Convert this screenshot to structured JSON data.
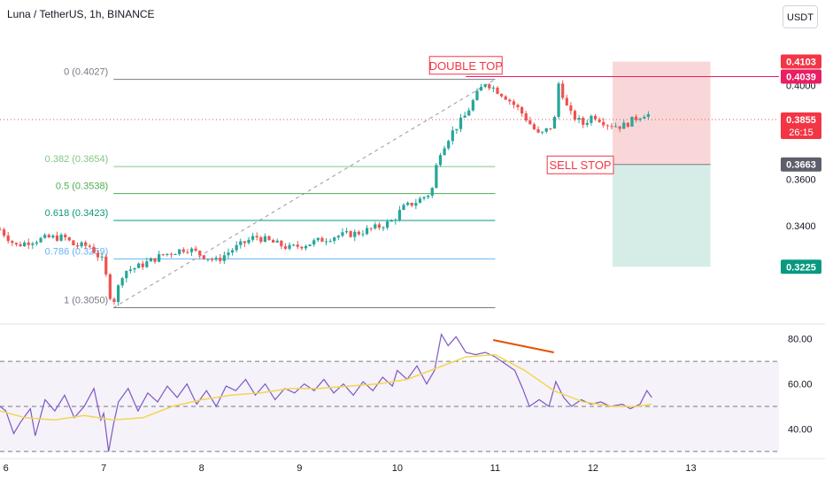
{
  "header": {
    "symbol_title": "Luna / TetherUS, 1h, BINANCE",
    "unit_button": "USDT"
  },
  "colors": {
    "up": "#26a69a",
    "down": "#ef5350",
    "rsi": "#7e57c2",
    "rsi_ma": "#f2d64f",
    "annotation": "#f23645",
    "trendline_orange": "#e65100",
    "sell_zone": "#f7c9cc",
    "buy_zone": "#cbe8e0"
  },
  "chart_data": {
    "type": "candlestick",
    "symbol": "Luna / TetherUS",
    "interval": "1h",
    "exchange": "BINANCE",
    "x_ticks": [
      {
        "label": "6",
        "day": 6
      },
      {
        "label": "7",
        "day": 7
      },
      {
        "label": "8",
        "day": 8
      },
      {
        "label": "9",
        "day": 9
      },
      {
        "label": "10",
        "day": 10
      },
      {
        "label": "11",
        "day": 11
      },
      {
        "label": "12",
        "day": 12
      },
      {
        "label": "13",
        "day": 13
      }
    ],
    "xlim_days": [
      5.94,
      13.9
    ],
    "price_axis": {
      "ylim": [
        0.2995,
        0.4215
      ],
      "ticks": [
        {
          "label": "0.4000",
          "value": 0.4
        },
        {
          "label": "0.3600",
          "value": 0.36
        },
        {
          "label": "0.3400",
          "value": 0.34
        }
      ]
    },
    "price_labels": [
      {
        "label": "0.4103",
        "value": 0.4103,
        "style": "red"
      },
      {
        "label": "0.4039",
        "value": 0.4039,
        "style": "magenta"
      },
      {
        "label": "0.3855",
        "value": 0.3855,
        "style": "red",
        "sub": "26:15"
      },
      {
        "label": "0.3663",
        "value": 0.3663,
        "style": "gray"
      },
      {
        "label": "0.3225",
        "value": 0.3225,
        "style": "teal"
      }
    ],
    "last_price": 0.3855,
    "candles_hourly_close_points": [
      [
        5.94,
        0.3385
      ],
      [
        6.1,
        0.3315
      ],
      [
        6.25,
        0.3335
      ],
      [
        6.45,
        0.335
      ],
      [
        6.6,
        0.335
      ],
      [
        6.7,
        0.3315
      ],
      [
        6.85,
        0.3315
      ],
      [
        7.0,
        0.3245
      ],
      [
        7.05,
        0.3115
      ],
      [
        7.1,
        0.3075
      ],
      [
        7.2,
        0.3205
      ],
      [
        7.35,
        0.3225
      ],
      [
        7.6,
        0.3275
      ],
      [
        7.85,
        0.3305
      ],
      [
        8.0,
        0.3275
      ],
      [
        8.15,
        0.325
      ],
      [
        8.3,
        0.3295
      ],
      [
        8.55,
        0.3355
      ],
      [
        8.75,
        0.3325
      ],
      [
        8.9,
        0.3305
      ],
      [
        9.1,
        0.3325
      ],
      [
        9.35,
        0.3355
      ],
      [
        9.6,
        0.337
      ],
      [
        9.8,
        0.3395
      ],
      [
        9.95,
        0.342
      ],
      [
        10.05,
        0.3475
      ],
      [
        10.2,
        0.3505
      ],
      [
        10.35,
        0.3545
      ],
      [
        10.42,
        0.3705
      ],
      [
        10.55,
        0.3795
      ],
      [
        10.7,
        0.3875
      ],
      [
        10.8,
        0.3955
      ],
      [
        10.9,
        0.4015
      ],
      [
        11.0,
        0.3985
      ],
      [
        11.1,
        0.3955
      ],
      [
        11.25,
        0.3895
      ],
      [
        11.45,
        0.3785
      ],
      [
        11.6,
        0.3835
      ],
      [
        11.65,
        0.4015
      ],
      [
        11.75,
        0.3885
      ],
      [
        11.9,
        0.3835
      ],
      [
        12.0,
        0.3875
      ],
      [
        12.15,
        0.3835
      ],
      [
        12.3,
        0.3825
      ],
      [
        12.45,
        0.3865
      ],
      [
        12.55,
        0.3885
      ],
      [
        12.6,
        0.3855
      ]
    ],
    "fib_retracement": {
      "levels": [
        {
          "label": "0 (0.4027)",
          "value": 0.4027,
          "color": "#787b86"
        },
        {
          "label": "0.382 (0.3654)",
          "value": 0.3654,
          "color": "#81c784"
        },
        {
          "label": "0.5 (0.3538)",
          "value": 0.3538,
          "color": "#4caf50"
        },
        {
          "label": "0.618 (0.3423)",
          "value": 0.3423,
          "color": "#089981"
        },
        {
          "label": "0.786 (0.3259)",
          "value": 0.3259,
          "color": "#64b5f6"
        },
        {
          "label": "1 (0.3050)",
          "value": 0.305,
          "color": "#787b86"
        }
      ],
      "from": {
        "day": 7.1,
        "value": 0.305
      },
      "to": {
        "day": 11.0,
        "value": 0.4027
      },
      "end_day": 11.0
    },
    "resistance_line": {
      "value": 0.4039,
      "from_day": 10.7
    },
    "position_tool": {
      "type": "short",
      "from_day": 12.2,
      "to_day": 13.2,
      "stop": 0.4103,
      "entry": 0.3663,
      "target": 0.3225
    },
    "annotations": [
      {
        "text": "DOUBLE TOP",
        "day": 10.7,
        "value": 0.4087
      },
      {
        "text": "SELL STOP",
        "day": 11.87,
        "value": 0.3661
      }
    ],
    "rsi": {
      "ylim": [
        28,
        85
      ],
      "ticks": [
        {
          "label": "80.00",
          "value": 80
        },
        {
          "label": "60.00",
          "value": 60
        },
        {
          "label": "40.00",
          "value": 40
        }
      ],
      "bands": {
        "upper": 70,
        "middle": 50,
        "lower": 30
      },
      "values": [
        [
          5.94,
          50
        ],
        [
          6.0,
          48
        ],
        [
          6.08,
          38
        ],
        [
          6.15,
          43
        ],
        [
          6.25,
          49
        ],
        [
          6.3,
          37
        ],
        [
          6.4,
          53
        ],
        [
          6.5,
          48
        ],
        [
          6.6,
          55
        ],
        [
          6.7,
          45
        ],
        [
          6.8,
          50
        ],
        [
          6.9,
          58
        ],
        [
          6.97,
          44
        ],
        [
          7.0,
          47
        ],
        [
          7.05,
          30
        ],
        [
          7.1,
          42
        ],
        [
          7.15,
          52
        ],
        [
          7.25,
          58
        ],
        [
          7.35,
          48
        ],
        [
          7.45,
          56
        ],
        [
          7.55,
          52
        ],
        [
          7.65,
          59
        ],
        [
          7.75,
          54
        ],
        [
          7.85,
          60
        ],
        [
          7.95,
          51
        ],
        [
          8.05,
          57
        ],
        [
          8.15,
          50
        ],
        [
          8.25,
          59
        ],
        [
          8.35,
          57
        ],
        [
          8.45,
          62
        ],
        [
          8.55,
          55
        ],
        [
          8.65,
          60
        ],
        [
          8.75,
          53
        ],
        [
          8.85,
          58
        ],
        [
          8.95,
          56
        ],
        [
          9.05,
          60
        ],
        [
          9.15,
          57
        ],
        [
          9.25,
          62
        ],
        [
          9.35,
          56
        ],
        [
          9.45,
          60
        ],
        [
          9.55,
          55
        ],
        [
          9.65,
          61
        ],
        [
          9.75,
          57
        ],
        [
          9.85,
          63
        ],
        [
          9.95,
          59
        ],
        [
          10.0,
          66
        ],
        [
          10.1,
          62
        ],
        [
          10.2,
          68
        ],
        [
          10.3,
          60
        ],
        [
          10.38,
          66
        ],
        [
          10.45,
          82
        ],
        [
          10.52,
          77
        ],
        [
          10.6,
          81
        ],
        [
          10.7,
          74
        ],
        [
          10.8,
          73
        ],
        [
          10.9,
          74
        ],
        [
          11.0,
          72
        ],
        [
          11.1,
          69
        ],
        [
          11.2,
          66
        ],
        [
          11.28,
          58
        ],
        [
          11.35,
          50
        ],
        [
          11.45,
          53
        ],
        [
          11.55,
          50
        ],
        [
          11.62,
          61
        ],
        [
          11.7,
          54
        ],
        [
          11.78,
          50
        ],
        [
          11.88,
          53
        ],
        [
          11.98,
          51
        ],
        [
          12.08,
          52
        ],
        [
          12.18,
          50
        ],
        [
          12.3,
          51
        ],
        [
          12.38,
          49
        ],
        [
          12.48,
          51
        ],
        [
          12.55,
          57
        ],
        [
          12.6,
          54
        ]
      ],
      "ma_values": [
        [
          5.94,
          48
        ],
        [
          6.2,
          45
        ],
        [
          6.5,
          44
        ],
        [
          6.8,
          46
        ],
        [
          7.1,
          44
        ],
        [
          7.4,
          45
        ],
        [
          7.7,
          50
        ],
        [
          8.0,
          53
        ],
        [
          8.3,
          55
        ],
        [
          8.6,
          56
        ],
        [
          8.9,
          58
        ],
        [
          9.2,
          58
        ],
        [
          9.5,
          59
        ],
        [
          9.8,
          60
        ],
        [
          10.1,
          62
        ],
        [
          10.4,
          67
        ],
        [
          10.7,
          72
        ],
        [
          11.0,
          73
        ],
        [
          11.3,
          66
        ],
        [
          11.6,
          57
        ],
        [
          11.9,
          52
        ],
        [
          12.2,
          50
        ],
        [
          12.45,
          50
        ],
        [
          12.6,
          51
        ]
      ],
      "divergence_line": {
        "from": [
          10.98,
          79.5
        ],
        "to": [
          11.6,
          74.0
        ]
      }
    }
  }
}
